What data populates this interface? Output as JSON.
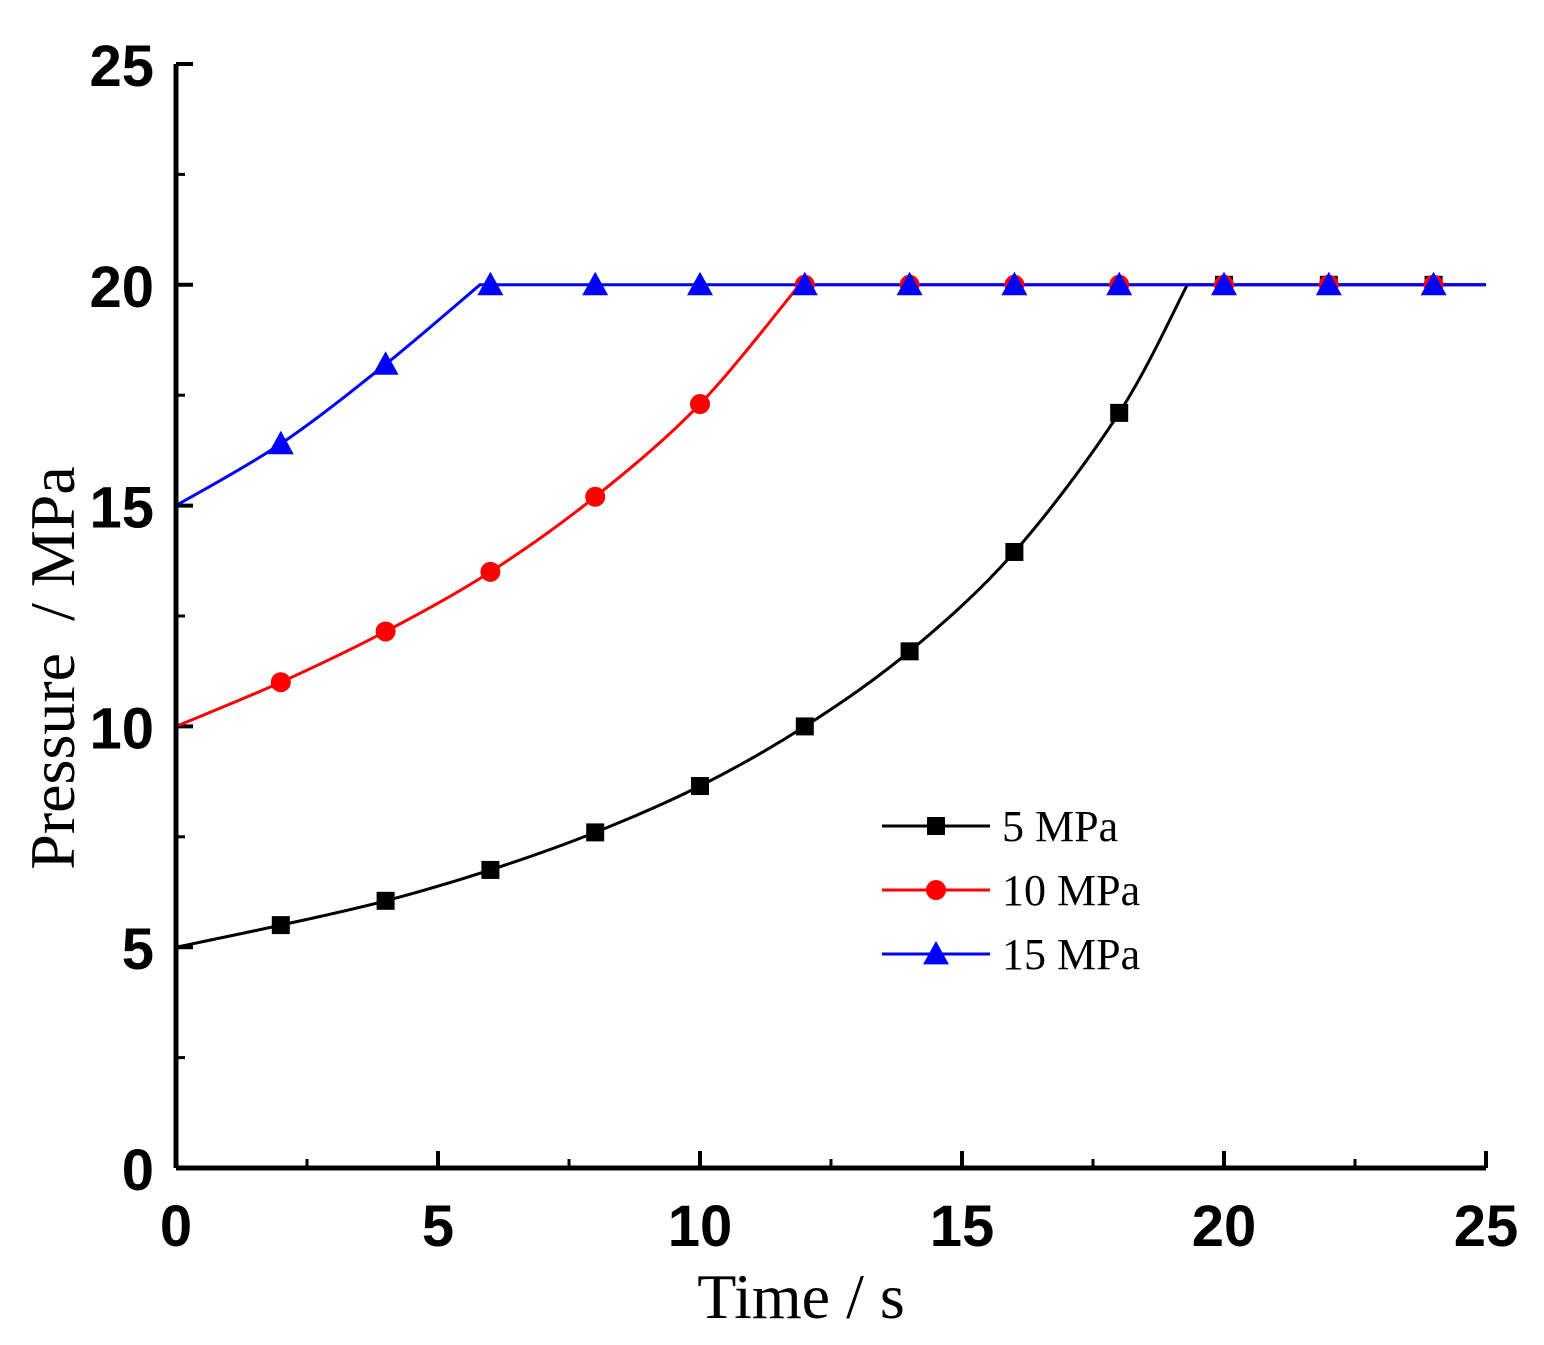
{
  "chart_data": {
    "type": "line",
    "title": "",
    "xlabel": "Time / s",
    "ylabel": "Pressure  / MPa",
    "xlim": [
      0,
      25
    ],
    "ylim": [
      0,
      25
    ],
    "xticks": [
      0,
      5,
      10,
      15,
      20,
      25
    ],
    "xtick_labels": [
      "0",
      "5",
      "10",
      "15",
      "20",
      "25"
    ],
    "yticks": [
      0,
      5,
      10,
      15,
      20,
      25
    ],
    "ytick_labels": [
      "0",
      "5",
      "10",
      "15",
      "20",
      "25"
    ],
    "minor_x_step": 2.5,
    "minor_y_step": 2.5,
    "grid": false,
    "legend_position": "center-right",
    "series": [
      {
        "name": "5 MPa",
        "color": "#000000",
        "marker": "square",
        "curve": [
          [
            0,
            5.0
          ],
          [
            2,
            5.5
          ],
          [
            4,
            6.05
          ],
          [
            6,
            6.75
          ],
          [
            8,
            7.6
          ],
          [
            10,
            8.65
          ],
          [
            12,
            10.0
          ],
          [
            14,
            11.7
          ],
          [
            16,
            13.95
          ],
          [
            18,
            17.1
          ],
          [
            19.3,
            20.0
          ],
          [
            25,
            20.0
          ]
        ],
        "markers": [
          [
            2,
            5.5
          ],
          [
            4,
            6.05
          ],
          [
            6,
            6.75
          ],
          [
            8,
            7.6
          ],
          [
            10,
            8.65
          ],
          [
            12,
            10.0
          ],
          [
            14,
            11.7
          ],
          [
            16,
            13.95
          ],
          [
            18,
            17.1
          ],
          [
            20,
            20.0
          ],
          [
            22,
            20.0
          ],
          [
            24,
            20.0
          ]
        ]
      },
      {
        "name": "10 MPa",
        "color": "#ff0000",
        "marker": "circle",
        "curve": [
          [
            0,
            10.0
          ],
          [
            2,
            11.0
          ],
          [
            4,
            12.15
          ],
          [
            6,
            13.5
          ],
          [
            8,
            15.2
          ],
          [
            10,
            17.3
          ],
          [
            11.9,
            20.0
          ],
          [
            25,
            20.0
          ]
        ],
        "markers": [
          [
            2,
            11.0
          ],
          [
            4,
            12.15
          ],
          [
            6,
            13.5
          ],
          [
            8,
            15.2
          ],
          [
            10,
            17.3
          ],
          [
            12,
            20.0
          ],
          [
            14,
            20.0
          ],
          [
            16,
            20.0
          ],
          [
            18,
            20.0
          ],
          [
            20,
            20.0
          ],
          [
            22,
            20.0
          ],
          [
            24,
            20.0
          ]
        ]
      },
      {
        "name": "15 MPa",
        "color": "#0000ff",
        "marker": "triangle",
        "curve": [
          [
            0,
            15.0
          ],
          [
            2,
            16.4
          ],
          [
            4,
            18.2
          ],
          [
            5.8,
            20.0
          ],
          [
            25,
            20.0
          ]
        ],
        "markers": [
          [
            2,
            16.4
          ],
          [
            4,
            18.2
          ],
          [
            6,
            20.0
          ],
          [
            8,
            20.0
          ],
          [
            10,
            20.0
          ],
          [
            12,
            20.0
          ],
          [
            14,
            20.0
          ],
          [
            16,
            20.0
          ],
          [
            18,
            20.0
          ],
          [
            20,
            20.0
          ],
          [
            22,
            20.0
          ],
          [
            24,
            20.0
          ]
        ]
      }
    ]
  }
}
